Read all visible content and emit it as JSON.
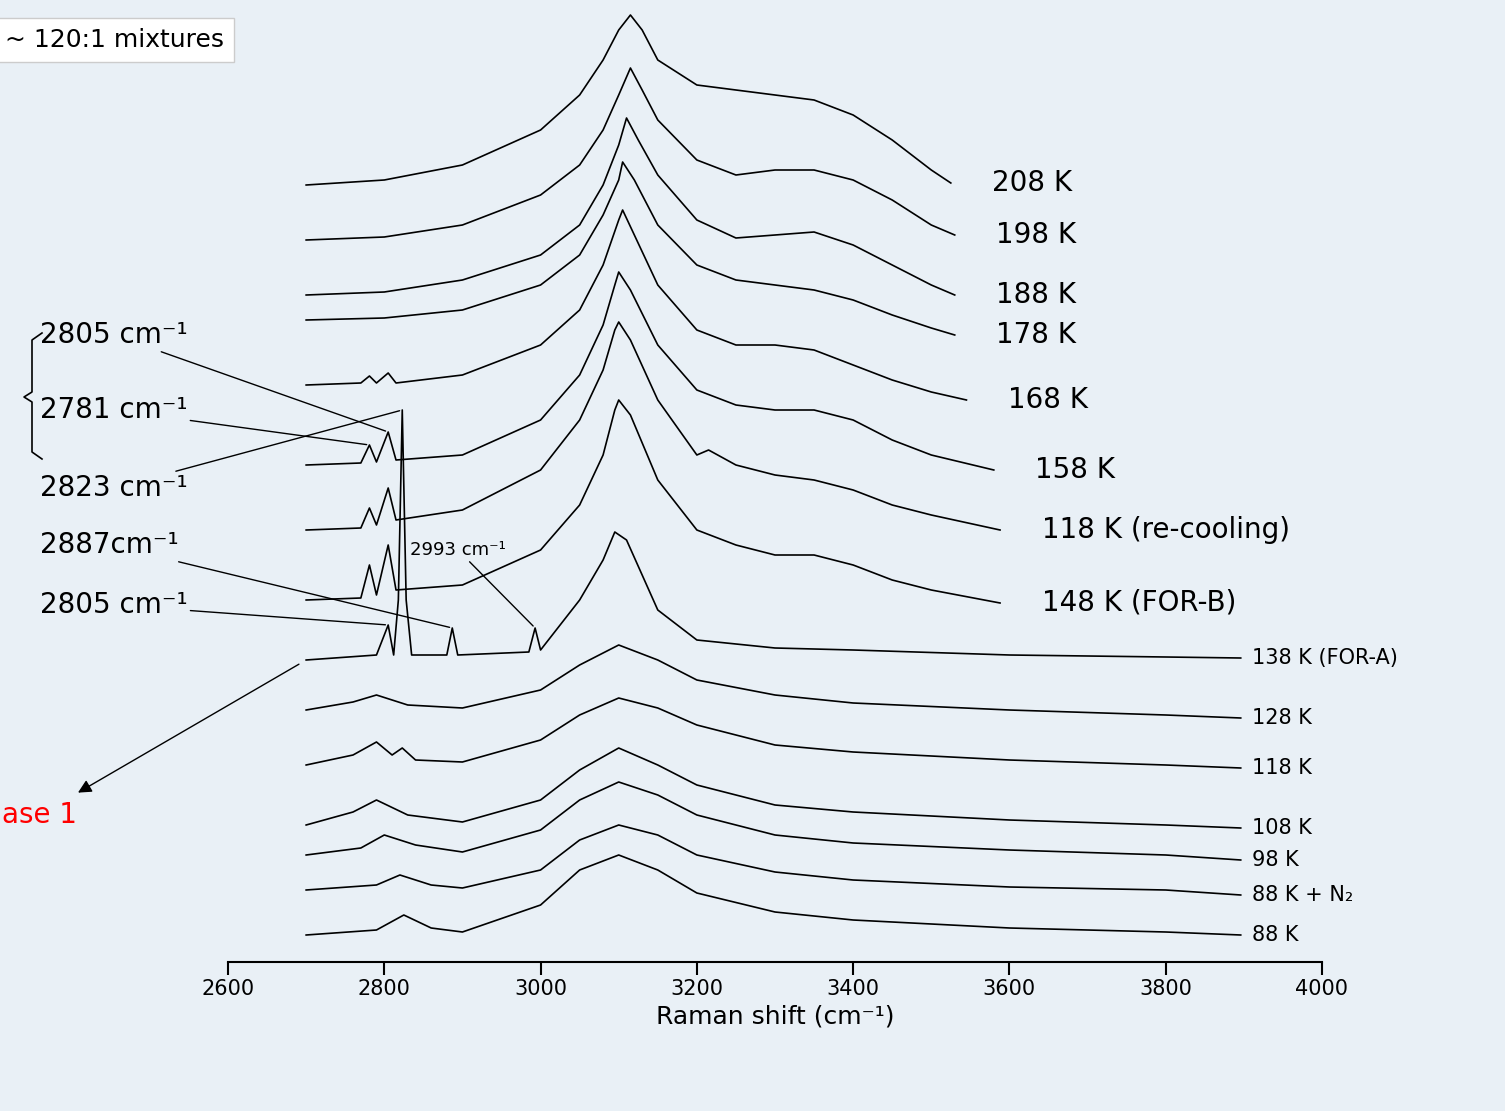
{
  "chart_data": {
    "type": "line",
    "title": "~ 120:1 mixtures",
    "x_label": "Raman shift (cm⁻¹)",
    "xlim": [
      2600,
      4000
    ],
    "xticks": [
      2600,
      2800,
      3000,
      3200,
      3400,
      3600,
      3800,
      4000
    ],
    "ylim": [
      0,
      960
    ],
    "yticks": [],
    "tick_labels": "x",
    "color": "#000000",
    "series": [
      {
        "name": "208 K",
        "x": [
          2700,
          2800,
          2900,
          3000,
          3050,
          3080,
          3100,
          3115,
          3130,
          3150,
          3200,
          3250,
          3300,
          3350,
          3400,
          3450,
          3500,
          3525
        ],
        "values": [
          777,
          782,
          797,
          832,
          867,
          902,
          932,
          947,
          932,
          902,
          877,
          872,
          867,
          862,
          847,
          822,
          792,
          779
        ]
      },
      {
        "name": "198 K",
        "x": [
          2700,
          2800,
          2900,
          3000,
          3050,
          3080,
          3100,
          3115,
          3130,
          3150,
          3200,
          3250,
          3300,
          3350,
          3400,
          3450,
          3500,
          3530
        ],
        "values": [
          722,
          725,
          737,
          767,
          797,
          832,
          867,
          894,
          872,
          842,
          802,
          787,
          792,
          792,
          782,
          762,
          737,
          727
        ]
      },
      {
        "name": "188 K",
        "x": [
          2700,
          2800,
          2900,
          3000,
          3050,
          3080,
          3100,
          3110,
          3125,
          3150,
          3200,
          3250,
          3300,
          3350,
          3400,
          3450,
          3500,
          3530
        ],
        "values": [
          667,
          670,
          682,
          707,
          737,
          777,
          817,
          844,
          822,
          787,
          742,
          724,
          727,
          730,
          717,
          697,
          677,
          667
        ]
      },
      {
        "name": "178 K",
        "x": [
          2700,
          2800,
          2900,
          3000,
          3050,
          3080,
          3100,
          3105,
          3120,
          3150,
          3200,
          3250,
          3300,
          3350,
          3400,
          3450,
          3500,
          3530
        ],
        "values": [
          642,
          644,
          652,
          677,
          707,
          747,
          782,
          800,
          782,
          737,
          697,
          682,
          677,
          672,
          662,
          647,
          634,
          627
        ]
      },
      {
        "name": "168 K",
        "x": [
          2700,
          2770,
          2781,
          2790,
          2805,
          2815,
          2900,
          3000,
          3050,
          3080,
          3100,
          3105,
          3120,
          3150,
          3200,
          3250,
          3300,
          3350,
          3400,
          3450,
          3500,
          3545
        ],
        "values": [
          577,
          579,
          586,
          579,
          589,
          579,
          587,
          617,
          652,
          697,
          742,
          752,
          727,
          677,
          632,
          617,
          617,
          612,
          597,
          582,
          570,
          562
        ]
      },
      {
        "name": "158 K",
        "x": [
          2700,
          2770,
          2781,
          2790,
          2805,
          2815,
          2900,
          3000,
          3050,
          3080,
          3095,
          3100,
          3115,
          3150,
          3200,
          3250,
          3300,
          3350,
          3400,
          3450,
          3500,
          3580
        ],
        "values": [
          497,
          499,
          517,
          500,
          530,
          502,
          507,
          542,
          587,
          637,
          677,
          690,
          672,
          617,
          572,
          557,
          552,
          552,
          542,
          522,
          507,
          492
        ]
      },
      {
        "name": "118 K (re-cooling)",
        "x": [
          2700,
          2770,
          2781,
          2790,
          2805,
          2815,
          2900,
          3000,
          3050,
          3080,
          3095,
          3100,
          3115,
          3150,
          3200,
          3215,
          3250,
          3300,
          3350,
          3400,
          3450,
          3500,
          3588
        ],
        "values": [
          432,
          434,
          454,
          437,
          474,
          442,
          452,
          492,
          542,
          592,
          632,
          640,
          622,
          562,
          507,
          512,
          497,
          487,
          482,
          472,
          457,
          447,
          432
        ]
      },
      {
        "name": "148 K (FOR-B)",
        "x": [
          2700,
          2770,
          2781,
          2790,
          2805,
          2815,
          2900,
          3000,
          3050,
          3080,
          3095,
          3100,
          3115,
          3150,
          3200,
          3250,
          3300,
          3350,
          3400,
          3450,
          3500,
          3588
        ],
        "values": [
          362,
          364,
          397,
          367,
          417,
          372,
          377,
          412,
          457,
          507,
          552,
          562,
          547,
          482,
          432,
          417,
          407,
          407,
          397,
          382,
          372,
          359
        ]
      },
      {
        "name": "138 K (FOR-A)",
        "x": [
          2700,
          2790,
          2805,
          2812,
          2818,
          2823,
          2828,
          2835,
          2880,
          2887,
          2894,
          2985,
          2993,
          3000,
          3050,
          3080,
          3095,
          3110,
          3150,
          3200,
          3300,
          3400,
          3600,
          3800,
          3896
        ],
        "values": [
          302,
          307,
          337,
          307,
          362,
          552,
          362,
          307,
          307,
          334,
          307,
          310,
          334,
          312,
          362,
          402,
          430,
          422,
          352,
          322,
          314,
          312,
          307,
          305,
          304
        ]
      },
      {
        "name": "128 K",
        "x": [
          2700,
          2760,
          2790,
          2830,
          2900,
          3000,
          3050,
          3100,
          3150,
          3200,
          3300,
          3400,
          3600,
          3800,
          3896
        ],
        "values": [
          252,
          260,
          267,
          257,
          254,
          272,
          297,
          317,
          302,
          282,
          267,
          259,
          252,
          247,
          244
        ]
      },
      {
        "name": "118 K",
        "x": [
          2700,
          2760,
          2790,
          2810,
          2823,
          2840,
          2900,
          3000,
          3050,
          3100,
          3150,
          3200,
          3300,
          3400,
          3600,
          3800,
          3896
        ],
        "values": [
          197,
          207,
          220,
          207,
          214,
          202,
          200,
          222,
          247,
          264,
          254,
          237,
          217,
          210,
          202,
          197,
          194
        ]
      },
      {
        "name": "108 K",
        "x": [
          2700,
          2760,
          2790,
          2830,
          2900,
          3000,
          3050,
          3100,
          3150,
          3200,
          3300,
          3400,
          3600,
          3800,
          3896
        ],
        "values": [
          137,
          150,
          162,
          147,
          140,
          162,
          192,
          214,
          197,
          177,
          157,
          150,
          142,
          137,
          134
        ]
      },
      {
        "name": "98 K",
        "x": [
          2700,
          2770,
          2800,
          2840,
          2900,
          3000,
          3050,
          3100,
          3150,
          3200,
          3300,
          3400,
          3600,
          3800,
          3896
        ],
        "values": [
          107,
          114,
          127,
          117,
          110,
          132,
          162,
          180,
          167,
          147,
          127,
          119,
          112,
          107,
          102
        ]
      },
      {
        "name": "88 K + N₂",
        "x": [
          2700,
          2790,
          2820,
          2860,
          2900,
          3000,
          3050,
          3100,
          3150,
          3200,
          3300,
          3400,
          3600,
          3800,
          3896
        ],
        "values": [
          72,
          77,
          87,
          77,
          74,
          92,
          122,
          137,
          127,
          107,
          90,
          82,
          75,
          72,
          67
        ]
      },
      {
        "name": "88 K",
        "x": [
          2700,
          2790,
          2825,
          2860,
          2900,
          3000,
          3050,
          3100,
          3150,
          3200,
          3300,
          3400,
          3600,
          3800,
          3896
        ],
        "values": [
          27,
          32,
          47,
          34,
          30,
          57,
          92,
          107,
          92,
          69,
          50,
          42,
          34,
          30,
          27
        ]
      }
    ],
    "annotations": [
      {
        "text": "2805 cm⁻¹",
        "series": "158 K",
        "x": 2805
      },
      {
        "text": "2781 cm⁻¹",
        "series": "158 K",
        "x": 2781
      },
      {
        "text": "2823 cm⁻¹",
        "series": "138 K (FOR-A)",
        "x": 2823
      },
      {
        "text": "2887cm⁻¹",
        "series": "138 K (FOR-A)",
        "x": 2887
      },
      {
        "text": "2805 cm⁻¹",
        "series": "138 K (FOR-A)",
        "x": 2805
      },
      {
        "text": "2993 cm⁻¹",
        "series": "138 K (FOR-A)",
        "x": 2993
      }
    ],
    "callout": {
      "text": "ase 1",
      "series": "138 K (FOR-A)",
      "x": 2700,
      "color": "#ff0000"
    }
  }
}
